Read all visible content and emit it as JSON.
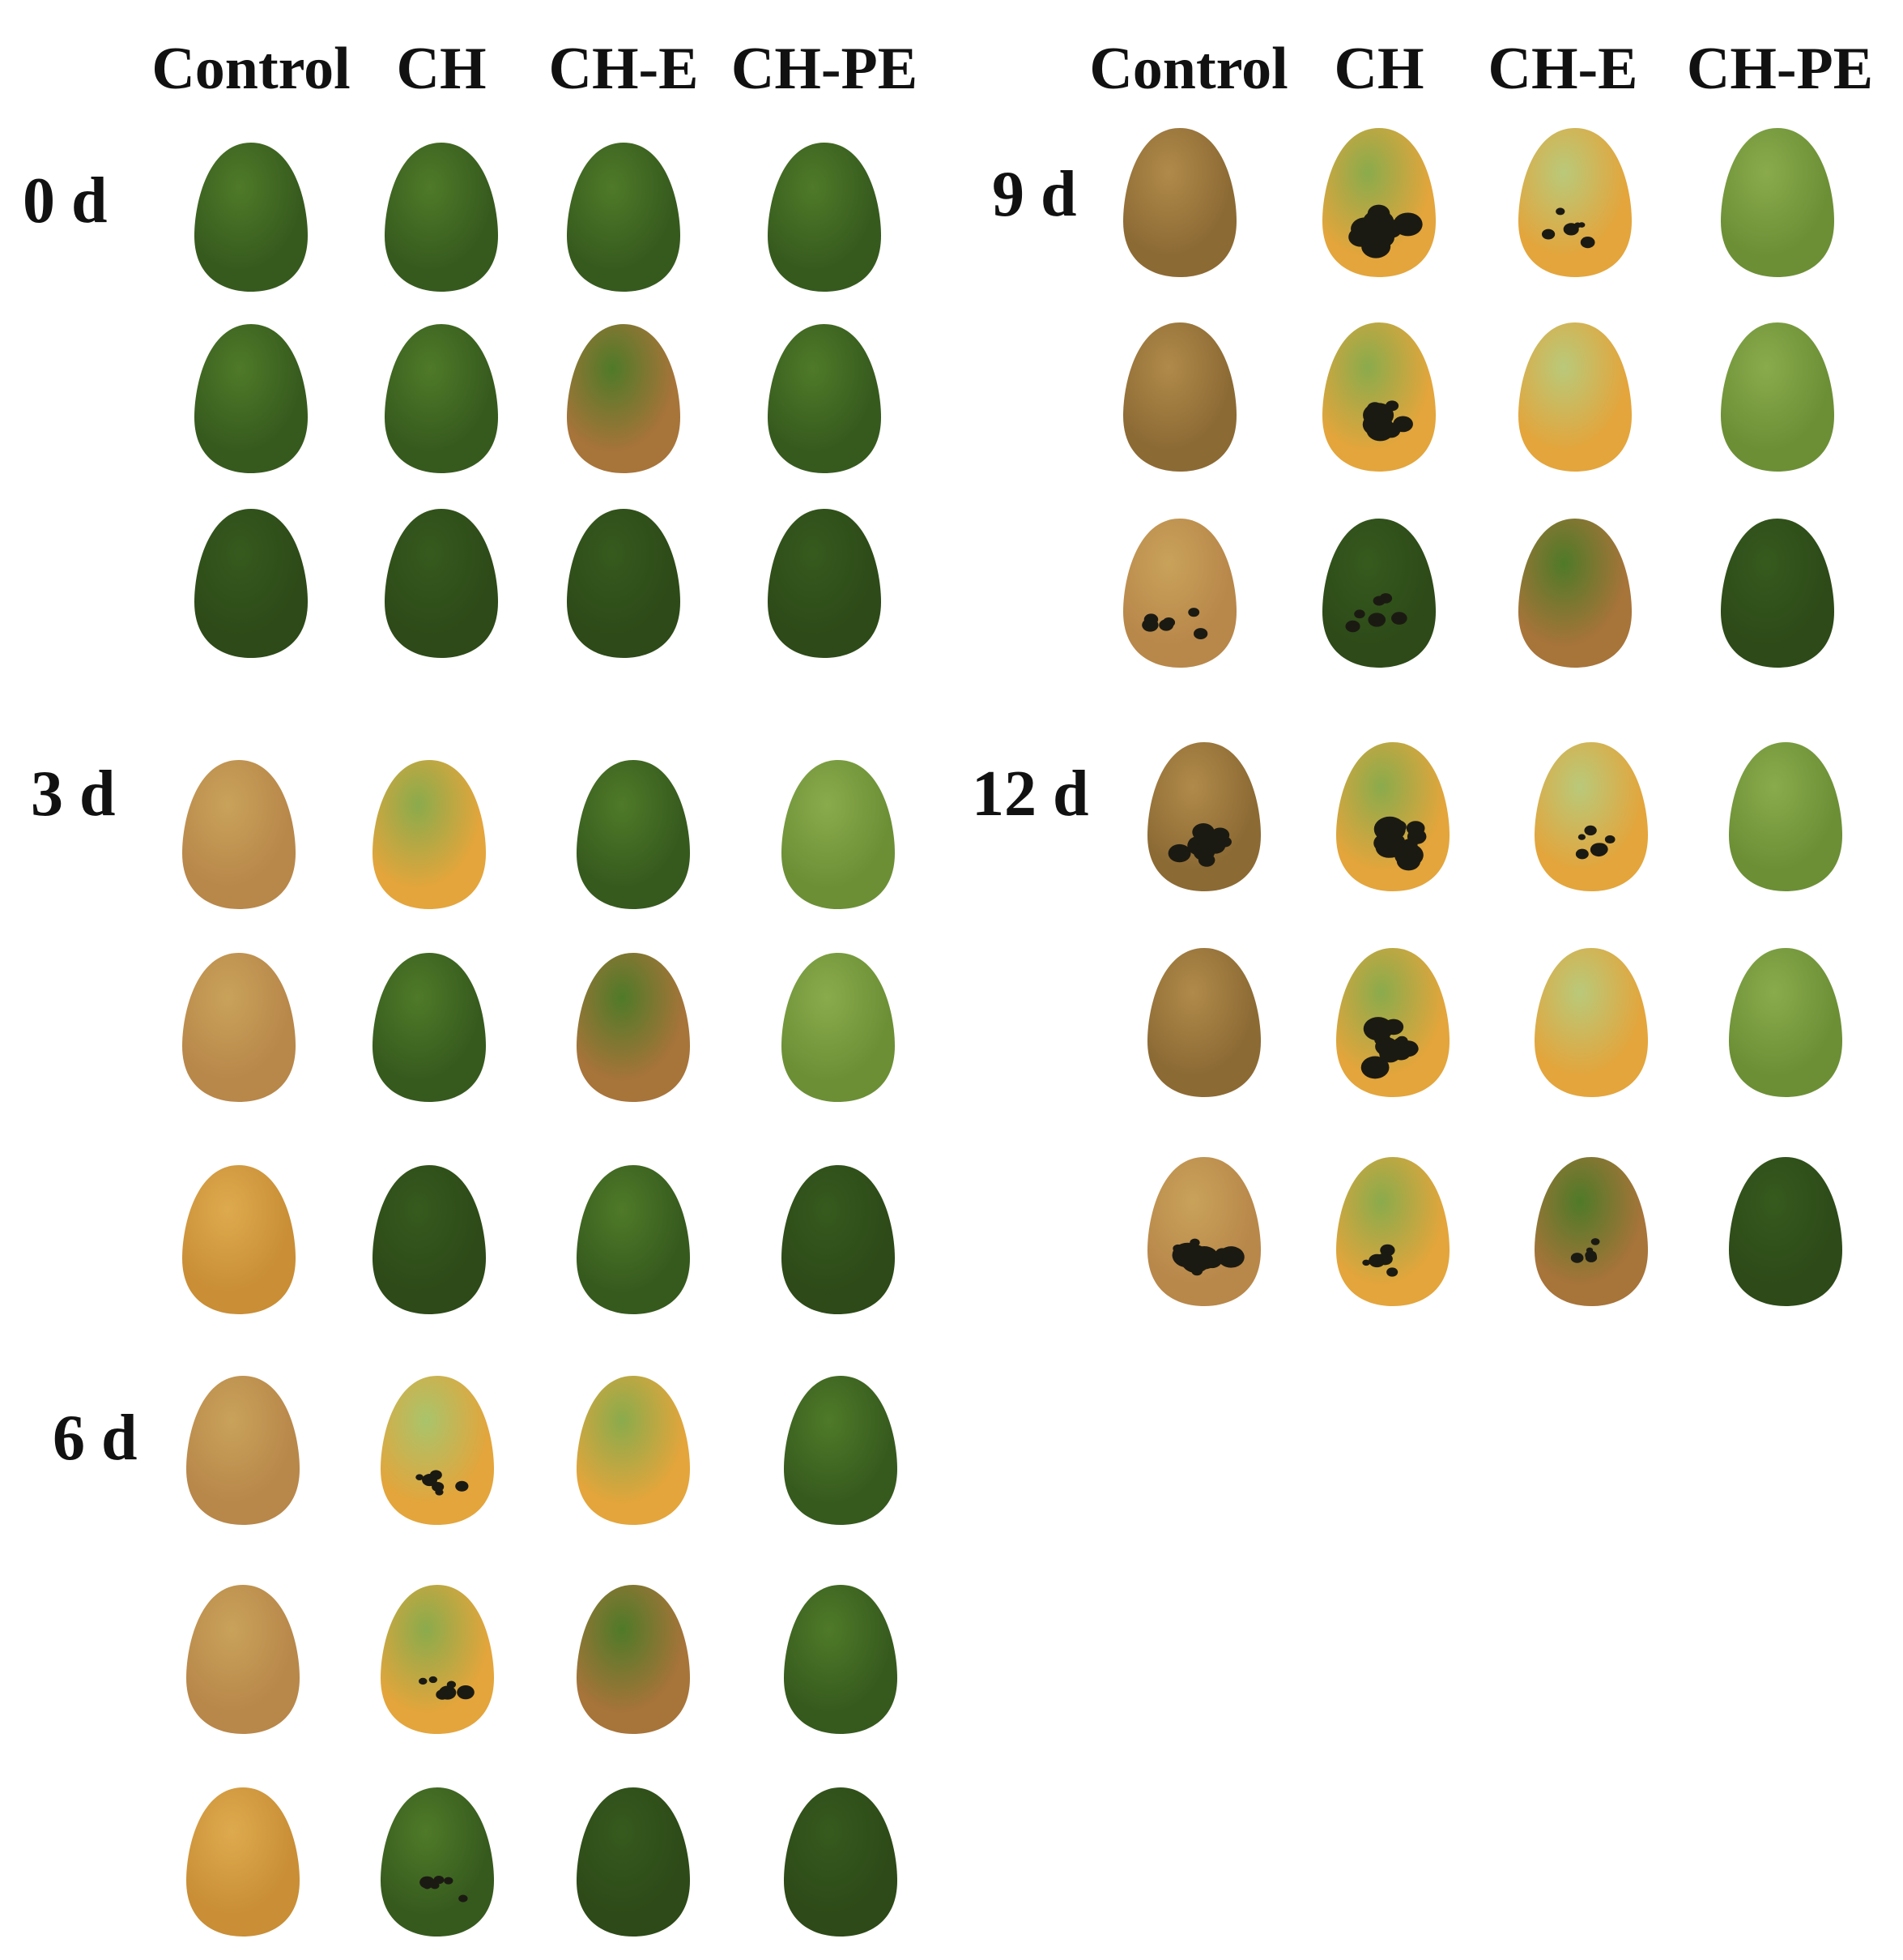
{
  "treatments": [
    "Control",
    "CH",
    "CH-E",
    "CH-PE"
  ],
  "days": [
    "0 d",
    "3 d",
    "6 d",
    "9 d",
    "12 d"
  ],
  "colors": {
    "fresh_green": "#4f7a28",
    "dark_green": "#365a1e",
    "light_green": "#8aab4c",
    "yellow_orange": "#e3a53c",
    "tan_brown": "#b08a4a",
    "black_lesion": "#1b1a12"
  },
  "panels": [
    {
      "day": "0 d",
      "fruits": [
        [
          "g",
          "g",
          "g",
          "g"
        ],
        [
          "g",
          "g",
          "go",
          "g"
        ],
        [
          "dg",
          "dg",
          "dg",
          "dg"
        ]
      ]
    },
    {
      "day": "3 d",
      "fruits": [
        [
          "tan",
          "gy",
          "g",
          "lg"
        ],
        [
          "tan",
          "g",
          "go",
          "lg"
        ],
        [
          "or",
          "dg",
          "g",
          "dg"
        ]
      ]
    },
    {
      "day": "6 d",
      "fruits": [
        [
          "tan",
          "lgy-s",
          "gy",
          "g"
        ],
        [
          "tan",
          "gy-s",
          "go",
          "g"
        ],
        [
          "or",
          "g-s",
          "dg",
          "dg"
        ]
      ]
    },
    {
      "day": "9 d",
      "fruits": [
        [
          "brown",
          "gy-S",
          "ly-s",
          "lg"
        ],
        [
          "brown",
          "gy-S",
          "ly",
          "lg"
        ],
        [
          "tan-s",
          "dg-s",
          "go",
          "dg"
        ]
      ]
    },
    {
      "day": "12 d",
      "fruits": [
        [
          "brown-S",
          "gy-S",
          "ly-s",
          "lg"
        ],
        [
          "brown",
          "gy-S",
          "ly",
          "lg"
        ],
        [
          "tan-S",
          "gy-s",
          "go-s",
          "dg"
        ]
      ]
    }
  ]
}
